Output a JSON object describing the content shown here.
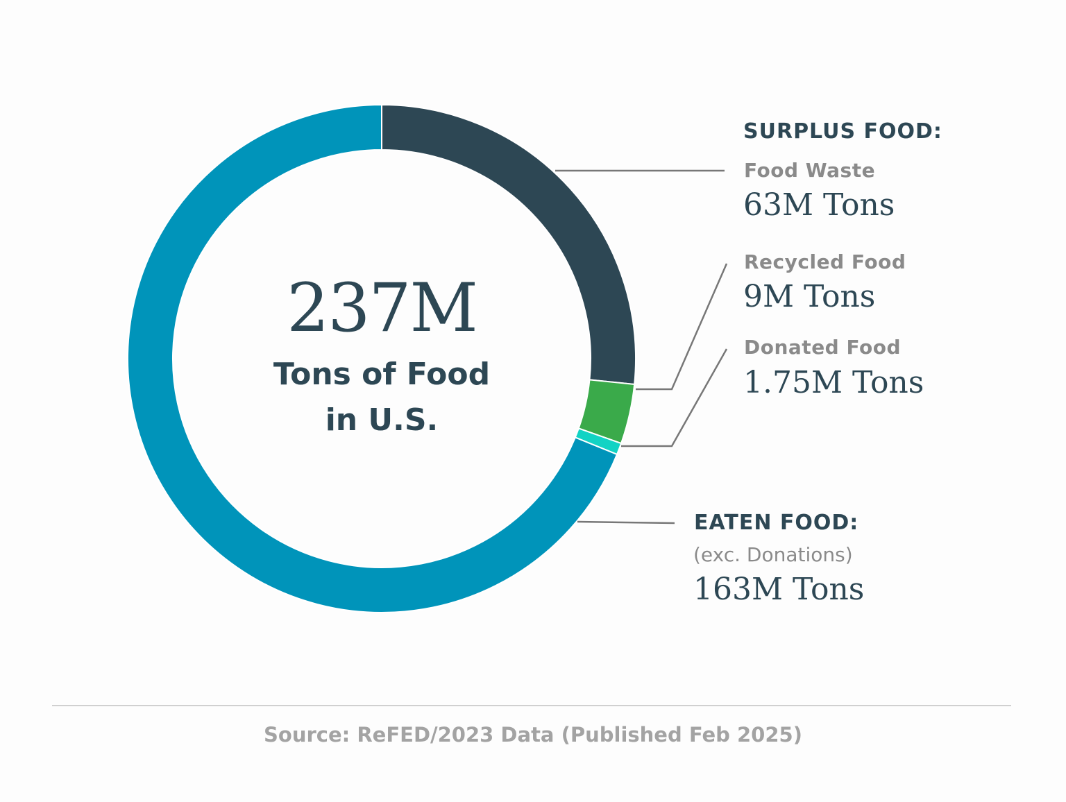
{
  "chart_data": {
    "type": "pie",
    "variant": "donut",
    "center_value": "237M",
    "center_label_line1": "Tons of Food",
    "center_label_line2": "in U.S.",
    "unit": "Tons",
    "start_angle": "12 o'clock, clockwise",
    "groups": {
      "surplus": "SURPLUS FOOD:",
      "eaten": "EATEN FOOD:"
    },
    "slices": [
      {
        "label": "Food Waste",
        "value": 63,
        "value_label": "63M Tons",
        "color": "#2d4754",
        "group": "surplus"
      },
      {
        "label": "Recycled Food",
        "value": 9,
        "value_label": "9M Tons",
        "color": "#3aaa4a",
        "group": "surplus"
      },
      {
        "label": "Donated Food",
        "value": 1.75,
        "value_label": "1.75M Tons",
        "color": "#12d3c4",
        "group": "surplus"
      },
      {
        "label": "",
        "note": "(exc. Donations)",
        "value": 163,
        "value_label": "163M Tons",
        "color": "#0094ba",
        "group": "eaten"
      }
    ],
    "source": "Source: ReFED/2023 Data (Published Feb 2025)"
  }
}
